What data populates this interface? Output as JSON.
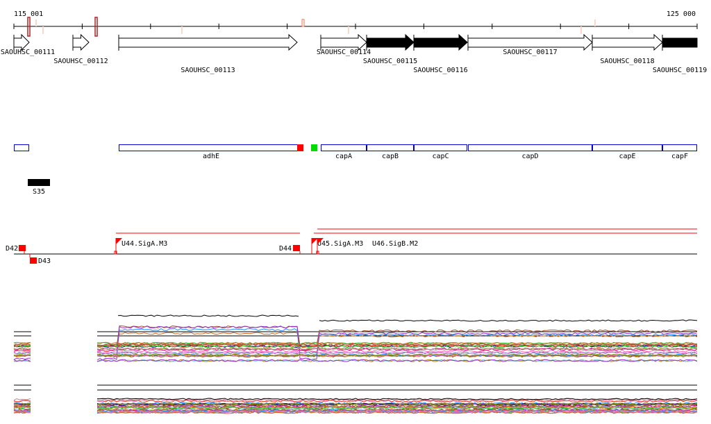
{
  "ruler": {
    "start_label": "115 001",
    "end_label": "125 000"
  },
  "genes": [
    {
      "name": "SAOUHSC_00111",
      "filled": false,
      "arrow": true
    },
    {
      "name": "SAOUHSC_00112",
      "filled": false,
      "arrow": true
    },
    {
      "name": "SAOUHSC_00113",
      "filled": false,
      "arrow": true
    },
    {
      "name": "SAOUHSC_00114",
      "filled": false,
      "arrow": true
    },
    {
      "name": "SAOUHSC_00115",
      "filled": true,
      "arrow": true
    },
    {
      "name": "SAOUHSC_00116",
      "filled": true,
      "arrow": true
    },
    {
      "name": "SAOUHSC_00117",
      "filled": false,
      "arrow": true
    },
    {
      "name": "SAOUHSC_00118",
      "filled": false,
      "arrow": true
    },
    {
      "name": "SAOUHSC_00119",
      "filled": true,
      "arrow": false
    }
  ],
  "operons": [
    {
      "name": ""
    },
    {
      "name": "adhE"
    },
    {
      "name": "capA"
    },
    {
      "name": "capB"
    },
    {
      "name": "capC"
    },
    {
      "name": "capD"
    },
    {
      "name": "capE"
    },
    {
      "name": "capF"
    }
  ],
  "ncrna": {
    "name": "S35"
  },
  "promoters": {
    "downstream": [
      "D42",
      "D43",
      "D44"
    ],
    "upstream": [
      "U44.SigA.M3",
      "U45.SigA.M3",
      "U46.SigB.M2"
    ]
  },
  "colors": {
    "promoter": "#ff0000",
    "operon_outline": "#0000cc",
    "gene_fill": "#000000",
    "marker_green": "#00dd00"
  }
}
